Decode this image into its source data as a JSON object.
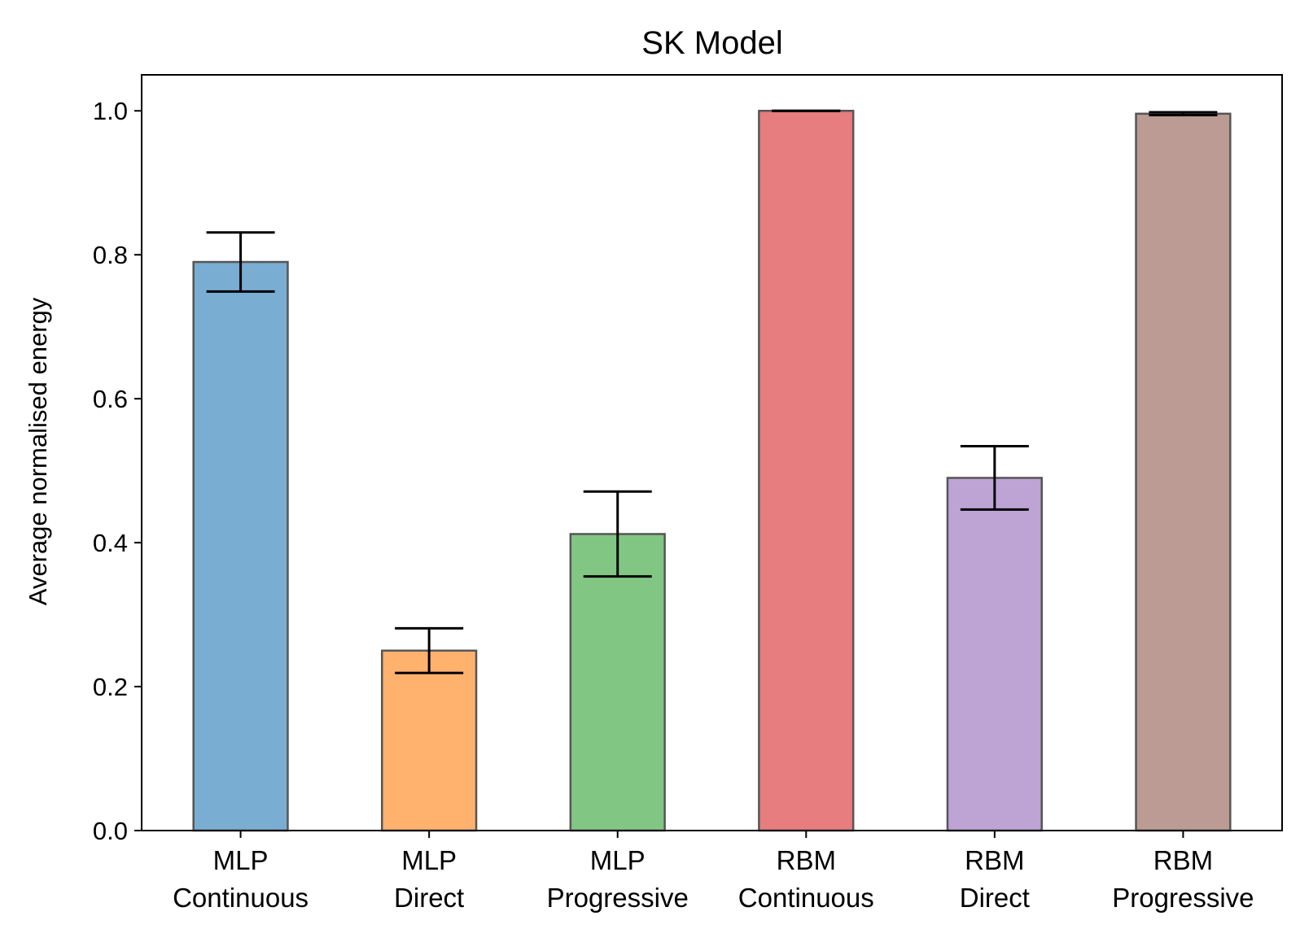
{
  "chart_data": {
    "type": "bar",
    "title": "SK Model",
    "xlabel": "",
    "ylabel": "Average normalised energy",
    "ylim": [
      0.0,
      1.05
    ],
    "yticks": [
      "0.0",
      "0.2",
      "0.4",
      "0.6",
      "0.8",
      "1.0"
    ],
    "grid": false,
    "categories": [
      {
        "line1": "MLP",
        "line2": "Continuous"
      },
      {
        "line1": "MLP",
        "line2": "Direct"
      },
      {
        "line1": "MLP",
        "line2": "Progressive"
      },
      {
        "line1": "RBM",
        "line2": "Continuous"
      },
      {
        "line1": "RBM",
        "line2": "Direct"
      },
      {
        "line1": "RBM",
        "line2": "Progressive"
      }
    ],
    "values": [
      0.79,
      0.25,
      0.412,
      1.0,
      0.49,
      0.996
    ],
    "errors": [
      0.041,
      0.031,
      0.059,
      0.0,
      0.044,
      0.002
    ],
    "colors": [
      "#7aadd2",
      "#ffb16e",
      "#82c683",
      "#e77d7e",
      "#bea3d5",
      "#bb9b93"
    ],
    "edge_color": "#555555"
  }
}
